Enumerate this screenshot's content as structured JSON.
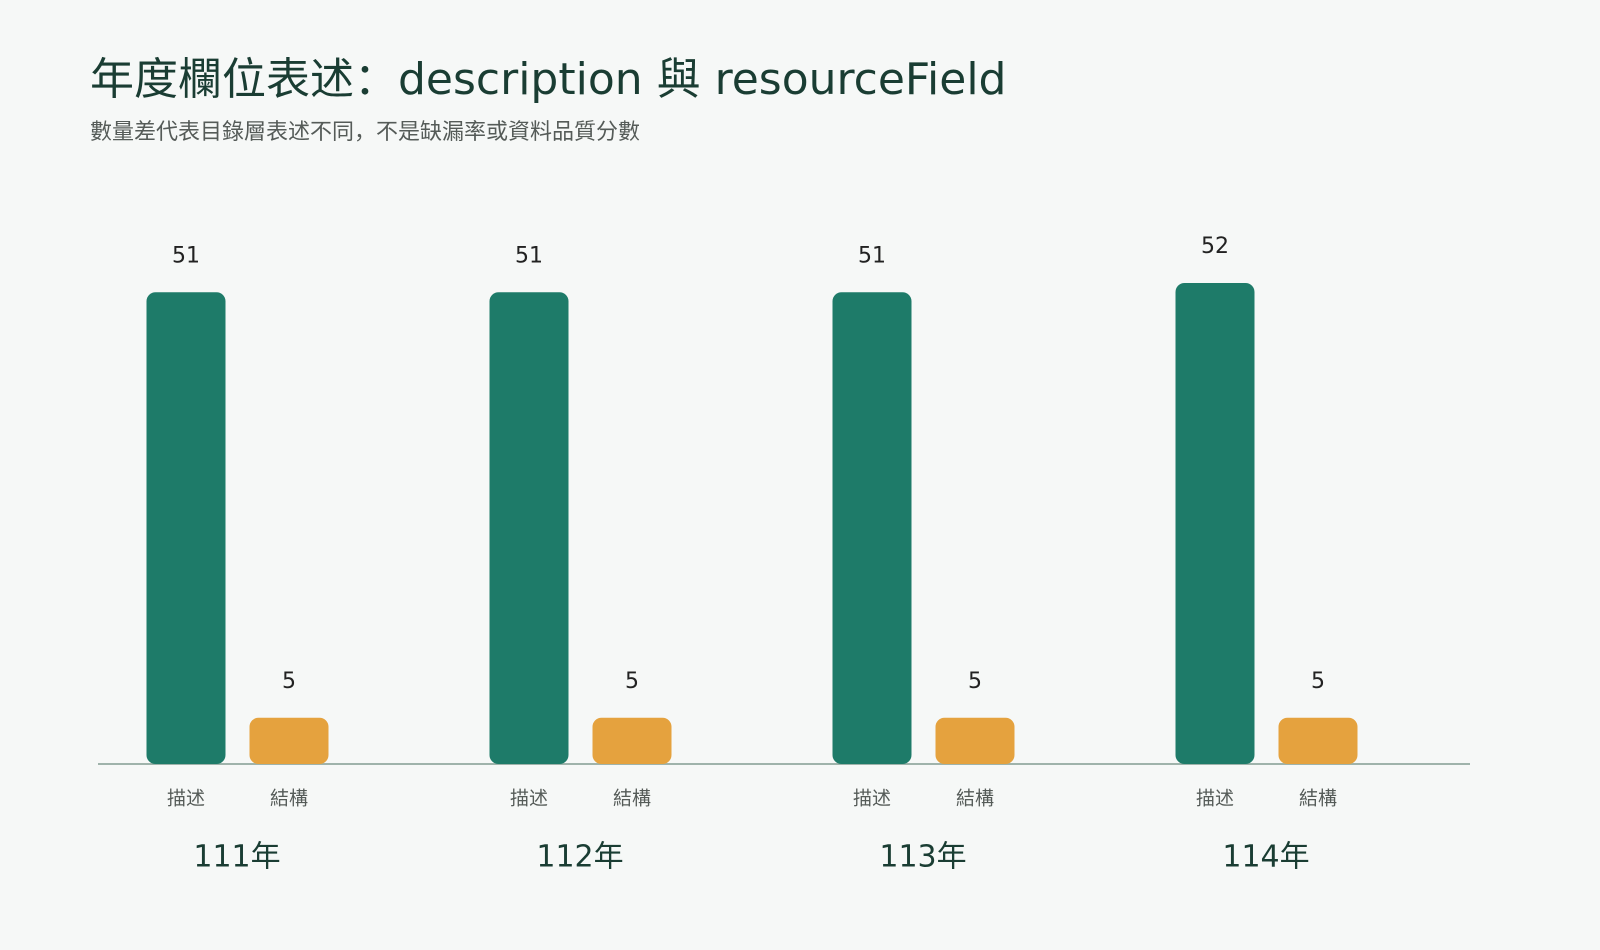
{
  "chart_data": {
    "type": "bar",
    "title": "年度欄位表述：description 與 resourceField",
    "subtitle": "數量差代表目錄層表述不同，不是缺漏率或資料品質分數",
    "categories": [
      "111年",
      "112年",
      "113年",
      "114年"
    ],
    "series": [
      {
        "name": "描述",
        "color": "#1e7b69",
        "values": [
          51,
          51,
          51,
          52
        ]
      },
      {
        "name": "結構",
        "color": "#e5a23e",
        "values": [
          5,
          5,
          5,
          5
        ]
      }
    ]
  }
}
